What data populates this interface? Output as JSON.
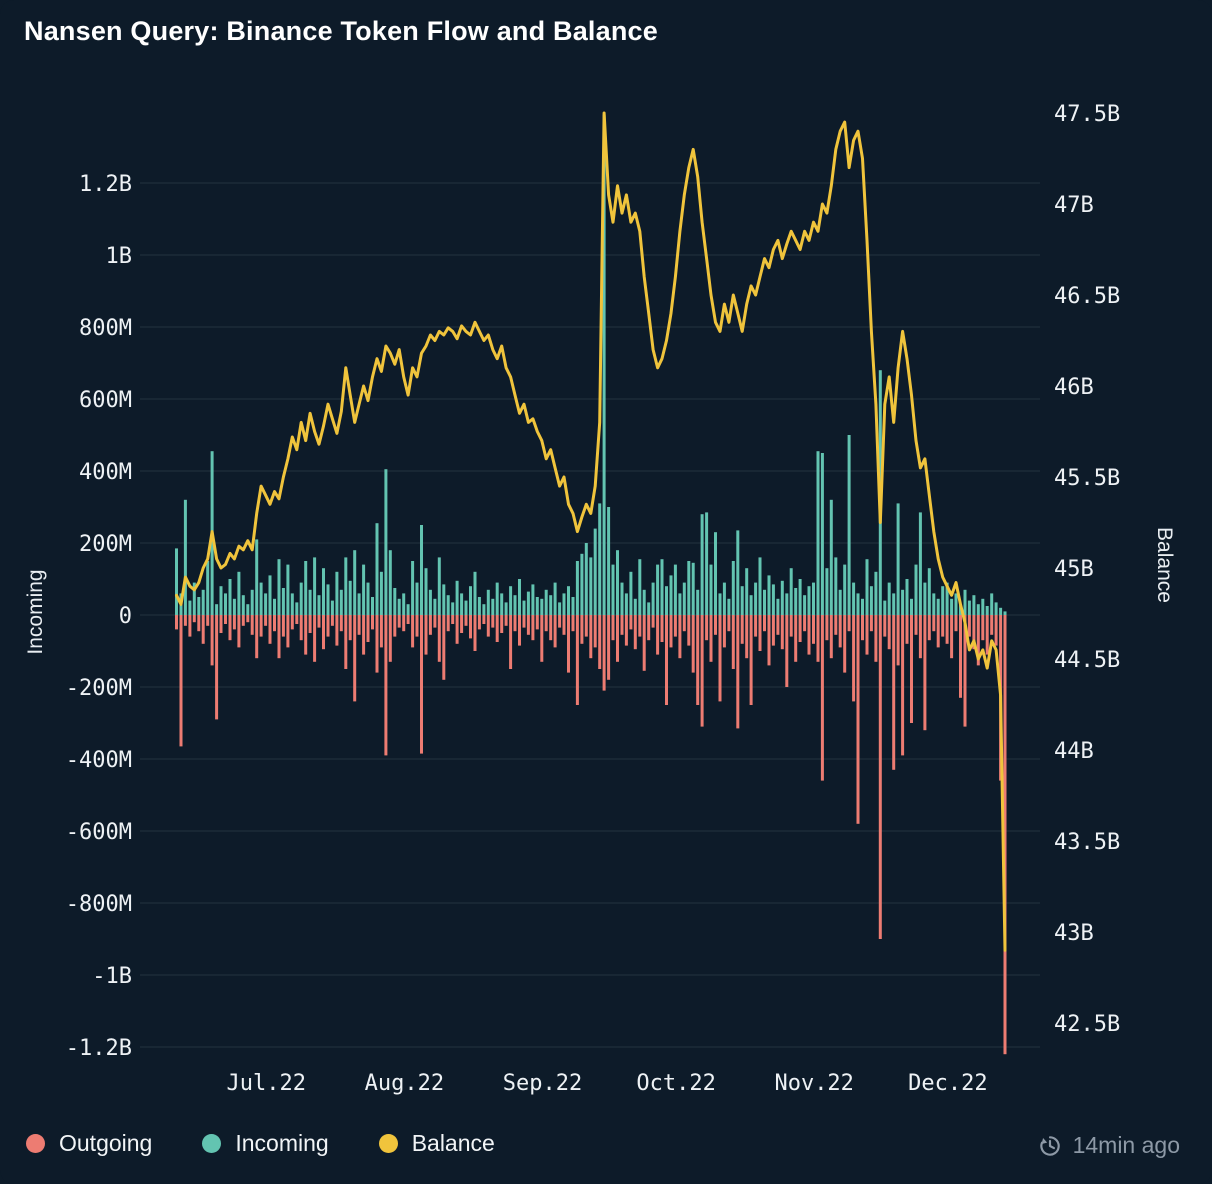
{
  "title": "Nansen Query: Binance Token Flow and Balance",
  "timestamp": {
    "icon": "history-clock-icon",
    "label": "14min ago"
  },
  "legend": [
    {
      "id": "outgoing",
      "label": "Outgoing",
      "color": "#ed7c72"
    },
    {
      "id": "incoming",
      "label": "Incoming",
      "color": "#63c4b1"
    },
    {
      "id": "balance",
      "label": "Balance",
      "color": "#f0c43c"
    }
  ],
  "colors": {
    "background": "#0d1b29",
    "grid": "#22333f",
    "text": "#eef2f5",
    "muted_text": "#8d99a6",
    "outgoing": "#ed7c72",
    "incoming": "#63c4b1",
    "balance": "#f0c43c"
  },
  "chart_data": {
    "type": "bar+line",
    "title": "Nansen Query: Binance Token Flow and Balance",
    "x": {
      "granularity": "daily",
      "start_date": "2022-06-11",
      "end_date": "2022-12-14",
      "tick_labels": [
        "Jul.22",
        "Aug.22",
        "Sep.22",
        "Oct.22",
        "Nov.22",
        "Dec.22"
      ],
      "tick_day_indices": [
        20,
        51,
        82,
        112,
        143,
        173
      ]
    },
    "left_axis": {
      "title": "Incoming",
      "unit": "tokens (M = millions)",
      "tick_labels": [
        "1.2B",
        "1B",
        "800M",
        "600M",
        "400M",
        "200M",
        "0",
        "-200M",
        "-400M",
        "-600M",
        "-800M",
        "-1B",
        "-1.2B"
      ],
      "tick_values_m": [
        1200,
        1000,
        800,
        600,
        400,
        200,
        0,
        -200,
        -400,
        -600,
        -800,
        -1000,
        -1200
      ],
      "range_m": [
        -1250,
        1400
      ],
      "grid": true
    },
    "right_axis": {
      "title": "Balance",
      "unit": "tokens (B = billions)",
      "tick_labels": [
        "47.5B",
        "47B",
        "46.5B",
        "46B",
        "45.5B",
        "45B",
        "44.5B",
        "44B",
        "43.5B",
        "43B",
        "42.5B"
      ],
      "tick_values_b": [
        47.5,
        47,
        46.5,
        46,
        45.5,
        45,
        44.5,
        44,
        43.5,
        43,
        42.5
      ],
      "range_b": [
        42.25,
        47.55
      ],
      "grid": false
    },
    "series": [
      {
        "name": "Incoming",
        "type": "bar",
        "axis": "left",
        "unit": "M",
        "values": [
          185,
          60,
          320,
          40,
          90,
          50,
          70,
          150,
          455,
          30,
          80,
          60,
          100,
          45,
          120,
          55,
          30,
          70,
          210,
          90,
          60,
          110,
          45,
          155,
          75,
          140,
          60,
          35,
          90,
          150,
          70,
          160,
          55,
          130,
          85,
          40,
          120,
          70,
          160,
          95,
          180,
          60,
          140,
          90,
          50,
          255,
          120,
          405,
          180,
          75,
          45,
          60,
          30,
          150,
          90,
          250,
          130,
          70,
          45,
          160,
          85,
          55,
          35,
          95,
          60,
          40,
          80,
          120,
          50,
          30,
          70,
          45,
          90,
          60,
          35,
          80,
          55,
          100,
          40,
          65,
          85,
          50,
          45,
          70,
          55,
          90,
          35,
          60,
          80,
          50,
          150,
          170,
          200,
          160,
          240,
          310,
          1390,
          300,
          140,
          180,
          90,
          60,
          120,
          45,
          155,
          70,
          35,
          90,
          140,
          155,
          80,
          110,
          140,
          60,
          90,
          150,
          145,
          70,
          280,
          285,
          140,
          230,
          60,
          90,
          45,
          150,
          235,
          80,
          130,
          55,
          90,
          160,
          70,
          110,
          85,
          45,
          95,
          60,
          130,
          75,
          100,
          55,
          80,
          90,
          455,
          450,
          130,
          320,
          160,
          70,
          140,
          500,
          90,
          60,
          45,
          155,
          80,
          120,
          680,
          40,
          90,
          60,
          310,
          70,
          100,
          45,
          140,
          285,
          90,
          130,
          60,
          45,
          80,
          90,
          45,
          60,
          30,
          70,
          40,
          55,
          30,
          45,
          25,
          60,
          35,
          20,
          10
        ]
      },
      {
        "name": "Outgoing",
        "type": "bar",
        "axis": "left",
        "unit": "M",
        "values": [
          -40,
          -365,
          -30,
          -60,
          -20,
          -45,
          -80,
          -30,
          -140,
          -290,
          -50,
          -25,
          -70,
          -40,
          -90,
          -30,
          -20,
          -55,
          -120,
          -60,
          -30,
          -80,
          -45,
          -120,
          -60,
          -90,
          -40,
          -25,
          -70,
          -110,
          -50,
          -130,
          -35,
          -95,
          -60,
          -30,
          -85,
          -45,
          -150,
          -70,
          -240,
          -55,
          -110,
          -75,
          -40,
          -160,
          -90,
          -390,
          -130,
          -60,
          -35,
          -45,
          -25,
          -90,
          -60,
          -385,
          -110,
          -55,
          -35,
          -130,
          -180,
          -45,
          -25,
          -80,
          -50,
          -30,
          -65,
          -100,
          -40,
          -25,
          -60,
          -35,
          -75,
          -50,
          -30,
          -150,
          -45,
          -85,
          -35,
          -55,
          -70,
          -40,
          -130,
          -45,
          -70,
          -90,
          -35,
          -55,
          -160,
          -45,
          -250,
          -80,
          -60,
          -120,
          -90,
          -150,
          -210,
          -180,
          -70,
          -130,
          -55,
          -85,
          -40,
          -95,
          -60,
          -155,
          -70,
          -35,
          -110,
          -75,
          -250,
          -90,
          -60,
          -120,
          -45,
          -85,
          -160,
          -250,
          -310,
          -70,
          -130,
          -55,
          -240,
          -90,
          -45,
          -150,
          -315,
          -80,
          -120,
          -250,
          -60,
          -100,
          -45,
          -140,
          -85,
          -55,
          -95,
          -200,
          -60,
          -130,
          -75,
          -45,
          -110,
          -80,
          -130,
          -460,
          -70,
          -120,
          -55,
          -90,
          -160,
          -45,
          -240,
          -580,
          -70,
          -110,
          -45,
          -130,
          -900,
          -60,
          -95,
          -430,
          -140,
          -390,
          -80,
          -300,
          -55,
          -120,
          -320,
          -70,
          -45,
          -90,
          -60,
          -80,
          -120,
          -45,
          -230,
          -310,
          -60,
          -95,
          -140,
          -70,
          -110,
          -55,
          -85,
          -460,
          -1220
        ]
      },
      {
        "name": "Balance",
        "type": "line",
        "axis": "right",
        "unit": "B",
        "values": [
          44.85,
          44.8,
          44.95,
          44.9,
          44.88,
          44.92,
          45.0,
          45.05,
          45.2,
          45.05,
          45.0,
          45.02,
          45.08,
          45.05,
          45.12,
          45.1,
          45.15,
          45.1,
          45.3,
          45.45,
          45.4,
          45.35,
          45.42,
          45.38,
          45.5,
          45.6,
          45.72,
          45.65,
          45.8,
          45.7,
          45.85,
          45.75,
          45.68,
          45.78,
          45.9,
          45.82,
          45.74,
          45.86,
          46.1,
          45.95,
          45.8,
          45.9,
          46.0,
          45.92,
          46.05,
          46.15,
          46.08,
          46.22,
          46.18,
          46.12,
          46.2,
          46.05,
          45.95,
          46.1,
          46.05,
          46.18,
          46.22,
          46.28,
          46.25,
          46.3,
          46.28,
          46.32,
          46.3,
          46.26,
          46.33,
          46.3,
          46.28,
          46.35,
          46.3,
          46.25,
          46.28,
          46.2,
          46.15,
          46.22,
          46.1,
          46.05,
          45.95,
          45.85,
          45.9,
          45.8,
          45.82,
          45.75,
          45.7,
          45.6,
          45.65,
          45.55,
          45.45,
          45.5,
          45.35,
          45.3,
          45.2,
          45.28,
          45.35,
          45.3,
          45.45,
          45.8,
          47.5,
          47.05,
          46.9,
          47.1,
          46.95,
          47.05,
          46.9,
          46.95,
          46.85,
          46.6,
          46.4,
          46.2,
          46.1,
          46.15,
          46.25,
          46.4,
          46.6,
          46.85,
          47.05,
          47.2,
          47.3,
          47.15,
          46.9,
          46.7,
          46.5,
          46.35,
          46.3,
          46.45,
          46.35,
          46.5,
          46.4,
          46.3,
          46.45,
          46.55,
          46.5,
          46.6,
          46.7,
          46.65,
          46.75,
          46.8,
          46.7,
          46.78,
          46.85,
          46.8,
          46.75,
          46.85,
          46.8,
          46.9,
          46.85,
          47.0,
          46.95,
          47.1,
          47.3,
          47.4,
          47.45,
          47.2,
          47.35,
          47.4,
          47.25,
          46.8,
          46.3,
          45.9,
          45.25,
          45.9,
          46.05,
          45.8,
          46.1,
          46.3,
          46.15,
          45.95,
          45.7,
          45.55,
          45.6,
          45.4,
          45.2,
          45.05,
          44.95,
          44.9,
          44.85,
          44.92,
          44.8,
          44.7,
          44.55,
          44.6,
          44.5,
          44.55,
          44.45,
          44.6,
          44.55,
          44.3,
          42.9
        ]
      }
    ]
  }
}
